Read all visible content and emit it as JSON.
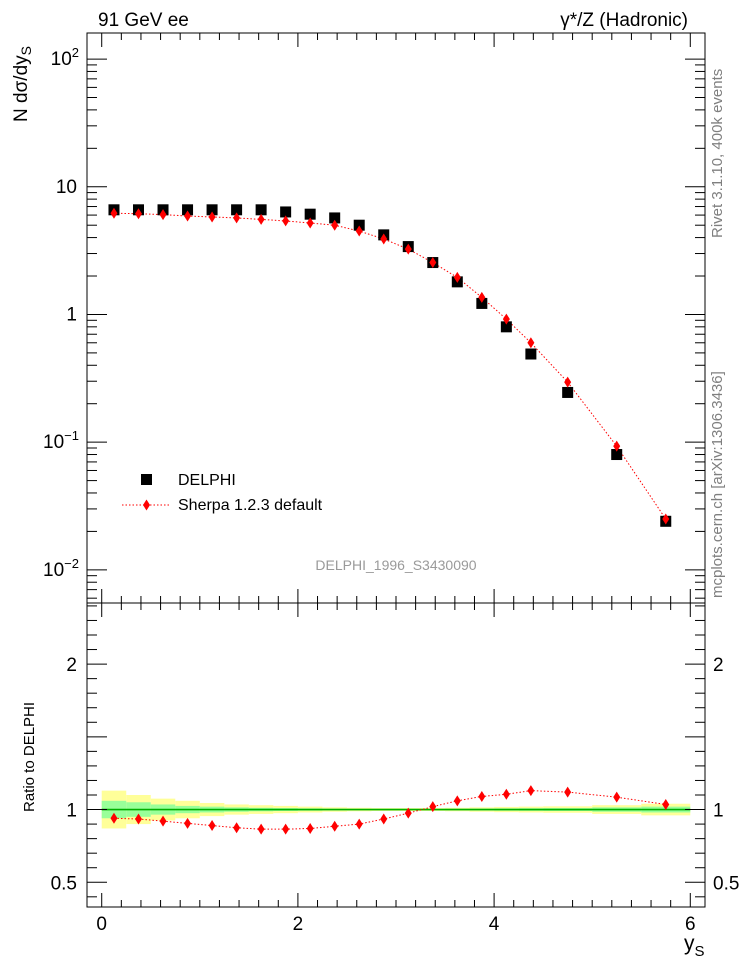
{
  "header": {
    "left_title": "91 GeV ee",
    "right_title": "γ*/Z (Hadronic)"
  },
  "side": {
    "rivet": "Rivet 3.1.10,  400k events",
    "mcplots": "mcplots.cern.ch [arXiv:1306.3436]"
  },
  "watermark": "DELPHI_1996_S3430090",
  "colors": {
    "data": "#000000",
    "mc": "#ff0000",
    "band_outer": "#ffff99",
    "band_inner": "#99ff99",
    "ratio_line": "#00b000"
  },
  "chart_data": [
    {
      "type": "scatter",
      "panel": "main",
      "ylabel": "N dσ/dy_S",
      "yscale": "log",
      "xlim": [
        -0.15,
        6.15
      ],
      "ylim": [
        0.0055,
        160
      ],
      "y_ticks": [
        {
          "value": 0.01,
          "base": "10",
          "exp": "−2"
        },
        {
          "value": 0.1,
          "base": "10",
          "exp": "−1"
        },
        {
          "value": 1,
          "base": "1",
          "exp": ""
        },
        {
          "value": 10,
          "base": "10",
          "exp": ""
        },
        {
          "value": 100,
          "base": "10",
          "exp": "2"
        }
      ],
      "legend": {
        "position": "bottom-left",
        "entries": [
          "DELPHI",
          "Sherpa 1.2.3 default"
        ]
      },
      "series": [
        {
          "name": "DELPHI",
          "marker": "square",
          "x": [
            0.125,
            0.375,
            0.625,
            0.875,
            1.125,
            1.375,
            1.625,
            1.875,
            2.125,
            2.375,
            2.625,
            2.875,
            3.125,
            3.375,
            3.625,
            3.875,
            4.125,
            4.375,
            4.75,
            5.25,
            5.75
          ],
          "values": [
            6.6,
            6.6,
            6.6,
            6.6,
            6.6,
            6.6,
            6.6,
            6.35,
            6.1,
            5.7,
            5.0,
            4.2,
            3.4,
            2.55,
            1.8,
            1.22,
            0.8,
            0.49,
            0.245,
            0.08,
            0.024
          ]
        },
        {
          "name": "Sherpa 1.2.3 default",
          "marker": "diamond",
          "x": [
            0.125,
            0.375,
            0.625,
            0.875,
            1.125,
            1.375,
            1.625,
            1.875,
            2.125,
            2.375,
            2.625,
            2.875,
            3.125,
            3.375,
            3.625,
            3.875,
            4.125,
            4.375,
            4.75,
            5.25,
            5.75
          ],
          "values": [
            6.2,
            6.15,
            6.05,
            5.9,
            5.8,
            5.7,
            5.55,
            5.4,
            5.2,
            5.0,
            4.5,
            3.9,
            3.25,
            2.55,
            1.95,
            1.36,
            0.92,
            0.6,
            0.295,
            0.093,
            0.025
          ]
        }
      ]
    },
    {
      "type": "line",
      "panel": "ratio",
      "ylabel": "Ratio to DELPHI",
      "xlabel": "y_S",
      "xlim": [
        -0.15,
        6.15
      ],
      "ylim": [
        0.33,
        2.42
      ],
      "y_ticks": [
        0.5,
        1,
        2
      ],
      "y_tick_labels": [
        "0.5",
        "1",
        "2"
      ],
      "x_ticks": [
        0,
        2,
        4,
        6
      ],
      "x_tick_labels": [
        "0",
        "2",
        "4",
        "6"
      ],
      "series": [
        {
          "name": "Sherpa 1.2.3 default",
          "x": [
            0.125,
            0.375,
            0.625,
            0.875,
            1.125,
            1.375,
            1.625,
            1.875,
            2.125,
            2.375,
            2.625,
            2.875,
            3.125,
            3.375,
            3.625,
            3.875,
            4.125,
            4.375,
            4.75,
            5.25,
            5.75
          ],
          "values": [
            0.94,
            0.935,
            0.92,
            0.905,
            0.89,
            0.875,
            0.865,
            0.865,
            0.87,
            0.885,
            0.9,
            0.935,
            0.975,
            1.02,
            1.06,
            1.09,
            1.105,
            1.13,
            1.12,
            1.085,
            1.035
          ]
        }
      ],
      "bands": {
        "bins": [
          [
            0,
            0.25
          ],
          [
            0.25,
            0.5
          ],
          [
            0.5,
            0.75
          ],
          [
            0.75,
            1.0
          ],
          [
            1.0,
            1.25
          ],
          [
            1.25,
            1.5
          ],
          [
            1.5,
            1.75
          ],
          [
            1.75,
            2.0
          ],
          [
            2.0,
            2.25
          ],
          [
            2.25,
            2.5
          ],
          [
            2.5,
            2.75
          ],
          [
            2.75,
            3.0
          ],
          [
            3.0,
            3.25
          ],
          [
            3.25,
            3.5
          ],
          [
            3.5,
            3.75
          ],
          [
            3.75,
            4.0
          ],
          [
            4.0,
            4.25
          ],
          [
            4.25,
            4.5
          ],
          [
            4.5,
            5.0
          ],
          [
            5.0,
            5.5
          ],
          [
            5.5,
            6.0
          ]
        ],
        "outer": [
          0.13,
          0.1,
          0.075,
          0.06,
          0.045,
          0.035,
          0.03,
          0.025,
          0.02,
          0.015,
          0.012,
          0.01,
          0.01,
          0.01,
          0.012,
          0.015,
          0.018,
          0.02,
          0.022,
          0.03,
          0.04
        ],
        "inner": [
          0.06,
          0.05,
          0.035,
          0.025,
          0.02,
          0.015,
          0.012,
          0.01,
          0.008,
          0.006,
          0.005,
          0.005,
          0.005,
          0.005,
          0.006,
          0.007,
          0.008,
          0.009,
          0.01,
          0.015,
          0.02
        ]
      }
    }
  ]
}
